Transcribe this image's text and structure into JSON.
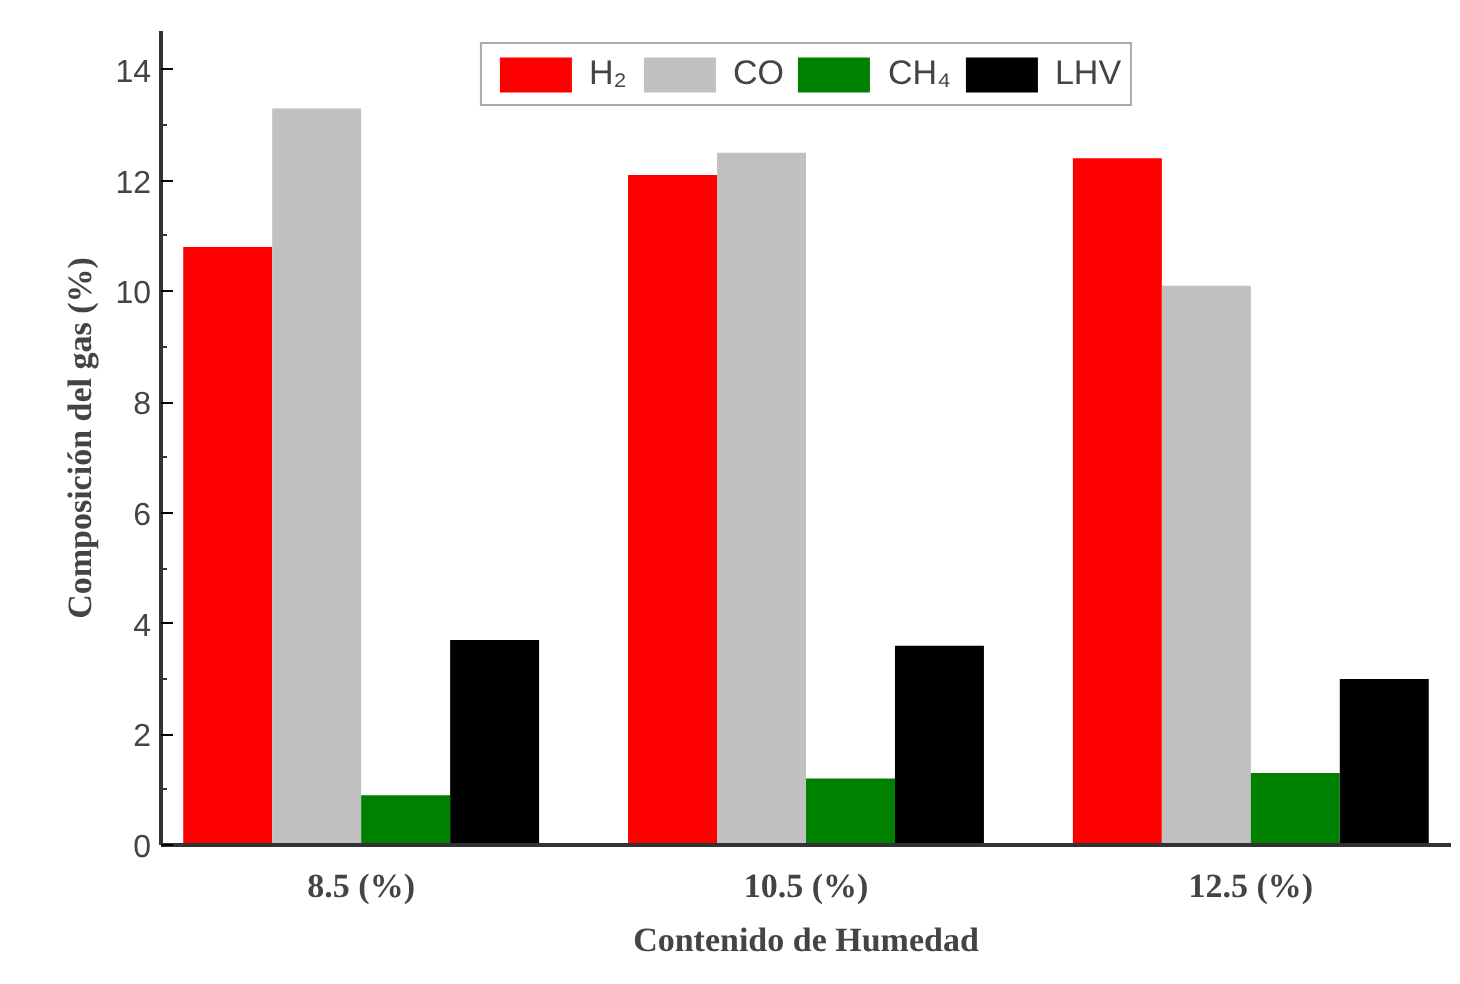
{
  "chart_data": {
    "type": "bar",
    "xlabel": "Contenido de Humedad",
    "ylabel": "Composición del gas (%)",
    "categories": [
      "8.5 (%)",
      "10.5 (%)",
      "12.5 (%)"
    ],
    "series": [
      {
        "name": "H₂",
        "color": "#ff0000",
        "values": [
          10.8,
          12.1,
          12.4
        ]
      },
      {
        "name": "CO",
        "color": "#c0c0c0",
        "values": [
          13.3,
          12.5,
          10.1
        ]
      },
      {
        "name": "CH₄",
        "color": "#008000",
        "values": [
          0.9,
          1.2,
          1.3
        ]
      },
      {
        "name": "LHV",
        "color": "#000000",
        "values": [
          3.7,
          3.6,
          3.0
        ]
      }
    ],
    "ylim": [
      0,
      14.7
    ],
    "yticks": [
      0,
      2,
      4,
      6,
      8,
      10,
      12,
      14
    ],
    "grid": false,
    "legend": "top"
  }
}
